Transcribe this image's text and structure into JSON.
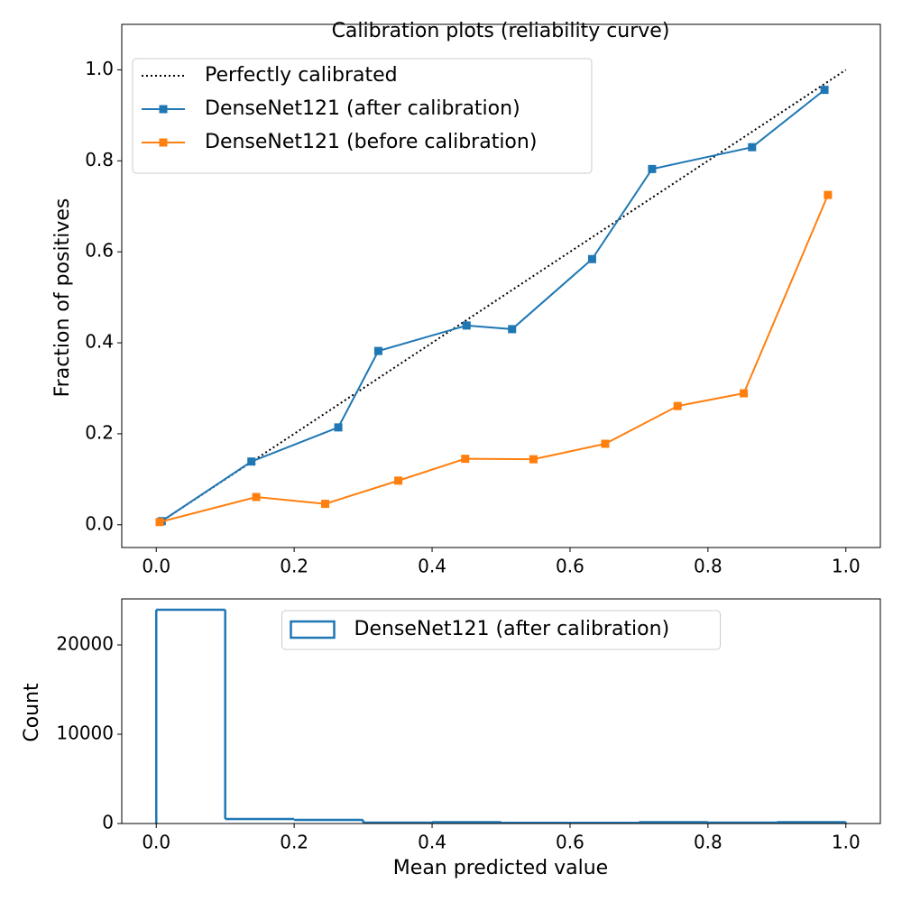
{
  "chart_data": [
    {
      "type": "line",
      "title": "Calibration plots  (reliability curve)",
      "y_label": "Fraction of positives",
      "xlim": [
        -0.05,
        1.05
      ],
      "ylim": [
        -0.05,
        1.1
      ],
      "xticks": [
        {
          "value": 0,
          "label": "0.0"
        },
        0.2,
        0.4,
        0.6,
        0.8,
        {
          "value": 1,
          "label": "1.0"
        }
      ],
      "yticks": [
        {
          "value": 0,
          "label": "0.0"
        },
        0.2,
        0.4,
        0.6,
        0.8,
        {
          "value": 1,
          "label": "1.0"
        }
      ],
      "legend": "upper left",
      "grid": false,
      "series": [
        {
          "name": "Perfectly calibrated",
          "color": "#000000",
          "style": "dotted",
          "x": [
            0,
            1
          ],
          "values": [
            0,
            1
          ]
        },
        {
          "name": "DenseNet121 (after calibration)",
          "color": "#1f77b4",
          "marker": "square",
          "x": [
            0.008,
            0.138,
            0.264,
            0.322,
            0.45,
            0.516,
            0.632,
            0.719,
            0.864,
            0.969
          ],
          "values": [
            0.008,
            0.139,
            0.214,
            0.382,
            0.438,
            0.43,
            0.584,
            0.782,
            0.83,
            0.956
          ]
        },
        {
          "name": "DenseNet121 (before calibration)",
          "color": "#ff7f0e",
          "marker": "square",
          "x": [
            0.005,
            0.145,
            0.245,
            0.351,
            0.448,
            0.547,
            0.651,
            0.756,
            0.852,
            0.974
          ],
          "values": [
            0.006,
            0.061,
            0.046,
            0.097,
            0.145,
            0.144,
            0.178,
            0.261,
            0.289,
            0.725
          ]
        }
      ]
    },
    {
      "type": "histogram",
      "x_label": "Mean predicted value",
      "y_label": "Count",
      "xlim": [
        -0.05,
        1.05
      ],
      "ylim": [
        0,
        25150
      ],
      "xticks": [
        {
          "value": 0,
          "label": "0.0"
        },
        0.2,
        0.4,
        0.6,
        0.8,
        {
          "value": 1,
          "label": "1.0"
        }
      ],
      "yticks": [
        0,
        10000,
        20000
      ],
      "legend": "upper center",
      "grid": false,
      "bins": [
        0,
        0.1,
        0.2,
        0.3,
        0.4,
        0.5,
        0.6,
        0.7,
        0.8,
        0.9,
        1.0
      ],
      "series": [
        {
          "name": "DenseNet121 (after calibration)",
          "color": "#1f77b4",
          "values": [
            23940,
            500,
            400,
            100,
            150,
            80,
            80,
            150,
            100,
            150
          ]
        }
      ]
    }
  ]
}
